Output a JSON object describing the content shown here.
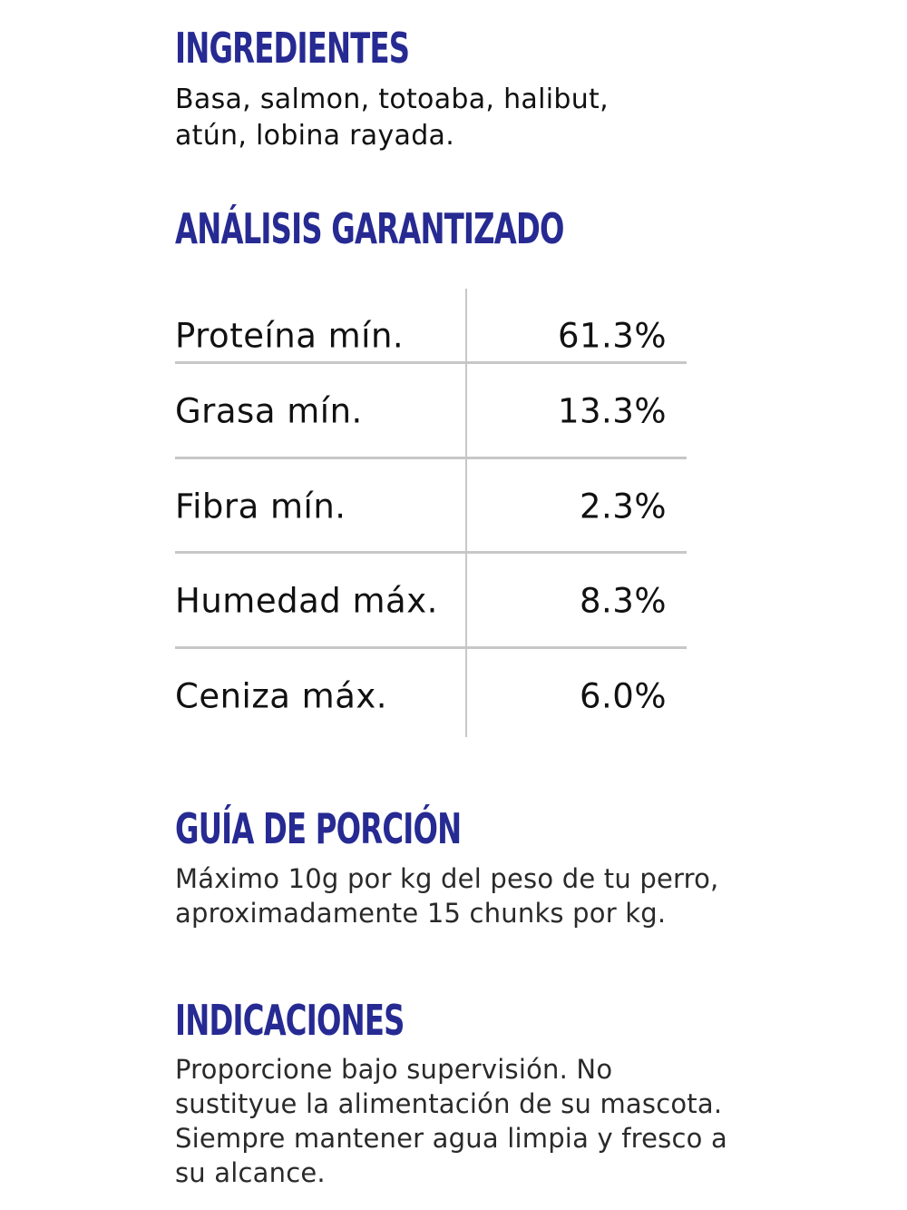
{
  "colors": {
    "heading": "#262a92",
    "divider": "#c7c7c7",
    "text": "#111111"
  },
  "ingredients": {
    "title": "INGREDIENTES",
    "lines": [
      "Basa, salmon, totoaba, halibut,",
      "atún, lobina rayada."
    ]
  },
  "analysis": {
    "title": "ANÁLISIS GARANTIZADO",
    "rows": [
      {
        "label": "Proteína mín.",
        "value": "61.3%"
      },
      {
        "label": "Grasa mín.",
        "value": "13.3%"
      },
      {
        "label": "Fibra mín.",
        "value": "2.3%"
      },
      {
        "label": "Humedad máx.",
        "value": "8.3%"
      },
      {
        "label": "Ceniza máx.",
        "value": "6.0%"
      }
    ]
  },
  "serving_guide": {
    "title": "GUÍA DE PORCIÓN",
    "lines": [
      "Máximo 10g por kg del peso de tu perro,",
      "aproximadamente 15 chunks por kg."
    ]
  },
  "indications": {
    "title": "INDICACIONES",
    "lines": [
      "Proporcione bajo supervisión. No",
      "sustityue la alimentación de su mascota.",
      "Siempre mantener agua limpia y fresco a",
      "su alcance."
    ]
  }
}
